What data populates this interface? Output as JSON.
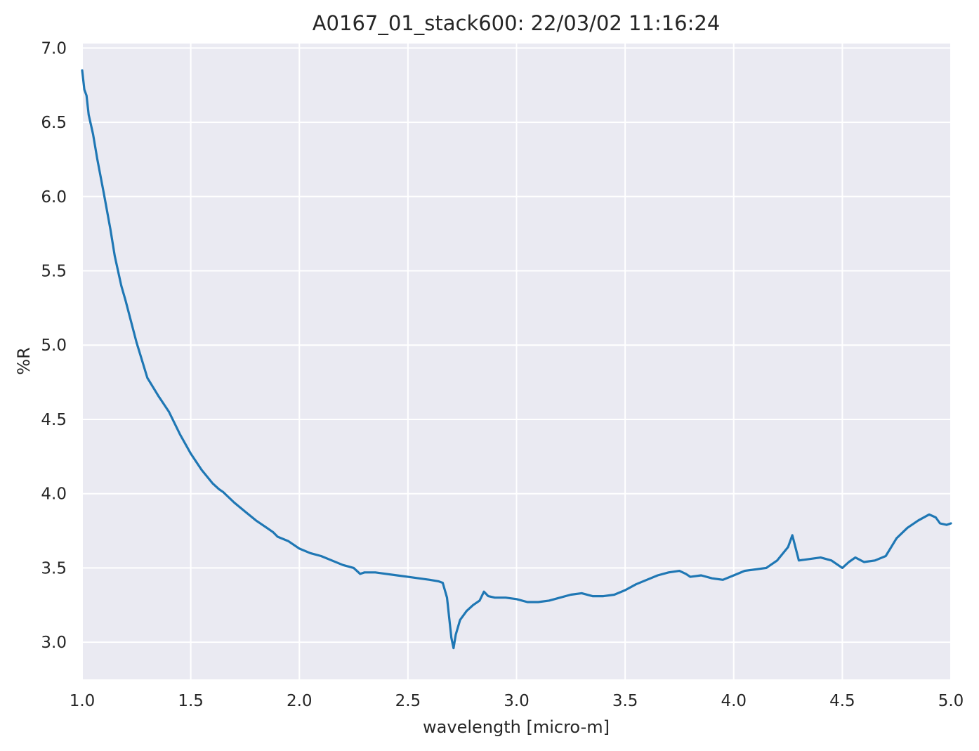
{
  "chart_data": {
    "type": "line",
    "title": "A0167_01_stack600:  22/03/02 11:16:24",
    "xlabel": "wavelength [micro-m]",
    "ylabel": "%R",
    "xlim": [
      1.0,
      5.0
    ],
    "ylim": [
      2.75,
      7.03
    ],
    "xticks": [
      "1.0",
      "1.5",
      "2.0",
      "2.5",
      "3.0",
      "3.5",
      "4.0",
      "4.5",
      "5.0"
    ],
    "yticks": [
      "3.0",
      "3.5",
      "4.0",
      "4.5",
      "5.0",
      "5.5",
      "6.0",
      "6.5",
      "7.0"
    ],
    "grid": true,
    "legend": "none",
    "colors": {
      "plot_background": "#eaeaf2",
      "grid": "#ffffff",
      "line": "#1f77b4",
      "text": "#262626"
    },
    "series": [
      {
        "x": [
          1.0,
          1.01,
          1.02,
          1.03,
          1.05,
          1.07,
          1.1,
          1.13,
          1.15,
          1.18,
          1.2,
          1.25,
          1.3,
          1.35,
          1.4,
          1.45,
          1.5,
          1.55,
          1.6,
          1.63,
          1.65,
          1.7,
          1.75,
          1.8,
          1.85,
          1.88,
          1.9,
          1.95,
          2.0,
          2.05,
          2.1,
          2.15,
          2.2,
          2.25,
          2.28,
          2.3,
          2.35,
          2.4,
          2.45,
          2.5,
          2.55,
          2.6,
          2.64,
          2.66,
          2.68,
          2.7,
          2.71,
          2.72,
          2.74,
          2.77,
          2.8,
          2.83,
          2.85,
          2.87,
          2.9,
          2.95,
          3.0,
          3.05,
          3.1,
          3.15,
          3.2,
          3.25,
          3.3,
          3.35,
          3.4,
          3.45,
          3.5,
          3.55,
          3.6,
          3.65,
          3.7,
          3.75,
          3.78,
          3.8,
          3.85,
          3.9,
          3.95,
          4.0,
          4.05,
          4.1,
          4.15,
          4.2,
          4.25,
          4.27,
          4.3,
          4.35,
          4.4,
          4.45,
          4.48,
          4.5,
          4.53,
          4.56,
          4.6,
          4.65,
          4.7,
          4.75,
          4.8,
          4.85,
          4.9,
          4.93,
          4.95,
          4.98,
          5.0
        ],
        "y": [
          6.85,
          6.72,
          6.68,
          6.55,
          6.42,
          6.25,
          6.02,
          5.78,
          5.6,
          5.4,
          5.3,
          5.02,
          4.78,
          4.66,
          4.55,
          4.4,
          4.27,
          4.16,
          4.07,
          4.03,
          4.01,
          3.94,
          3.88,
          3.82,
          3.77,
          3.74,
          3.71,
          3.68,
          3.63,
          3.6,
          3.58,
          3.55,
          3.52,
          3.5,
          3.46,
          3.47,
          3.47,
          3.46,
          3.45,
          3.44,
          3.43,
          3.42,
          3.41,
          3.4,
          3.3,
          3.03,
          2.96,
          3.05,
          3.15,
          3.21,
          3.25,
          3.28,
          3.34,
          3.31,
          3.3,
          3.3,
          3.29,
          3.27,
          3.27,
          3.28,
          3.3,
          3.32,
          3.33,
          3.31,
          3.31,
          3.32,
          3.35,
          3.39,
          3.42,
          3.45,
          3.47,
          3.48,
          3.46,
          3.44,
          3.45,
          3.43,
          3.42,
          3.45,
          3.48,
          3.49,
          3.5,
          3.55,
          3.64,
          3.72,
          3.55,
          3.56,
          3.57,
          3.55,
          3.52,
          3.5,
          3.54,
          3.57,
          3.54,
          3.55,
          3.58,
          3.7,
          3.77,
          3.82,
          3.86,
          3.84,
          3.8,
          3.79,
          3.8
        ]
      }
    ]
  }
}
